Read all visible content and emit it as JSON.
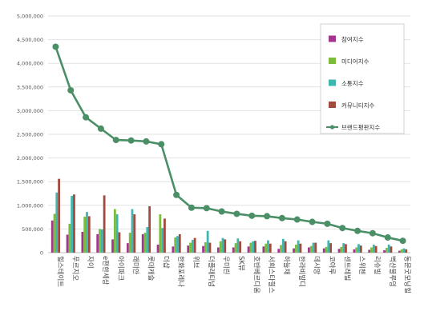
{
  "chart_data": {
    "type": "bar",
    "title": "",
    "xlabel": "",
    "ylabel": "",
    "ylim": [
      0,
      5000000
    ],
    "yticks": [
      "0",
      "500,000",
      "1,000,000",
      "1,500,000",
      "2,000,000",
      "2,500,000",
      "3,000,000",
      "3,500,000",
      "4,000,000",
      "4,500,000",
      "5,000,000"
    ],
    "grid": true,
    "legend_position": "top-right",
    "categories": [
      "힐스테이트",
      "푸르지오",
      "자이",
      "e편한세상",
      "아이파크",
      "래미안",
      "롯데캐슬",
      "더샵",
      "한화포레나",
      "위브",
      "더플래티넘",
      "우미린",
      "SK뷰",
      "호반베르디움",
      "서희스타힐스",
      "하늘채",
      "한라비발디",
      "데시앙",
      "코아루",
      "센트레빌",
      "스위첸",
      "리슈빌",
      "벽산블루밍",
      "동문굿모닝힐"
    ],
    "series": [
      {
        "name": "참여지수",
        "color": "#a4358f",
        "kind": "bar",
        "values": [
          680000,
          380000,
          440000,
          390000,
          280000,
          200000,
          390000,
          170000,
          130000,
          150000,
          140000,
          110000,
          110000,
          130000,
          130000,
          80000,
          90000,
          110000,
          90000,
          80000,
          70000,
          60000,
          50000,
          40000
        ]
      },
      {
        "name": "미디어지수",
        "color": "#7bbd3b",
        "kind": "bar",
        "values": [
          820000,
          610000,
          760000,
          500000,
          920000,
          420000,
          420000,
          810000,
          320000,
          210000,
          220000,
          240000,
          200000,
          210000,
          190000,
          160000,
          170000,
          140000,
          120000,
          120000,
          110000,
          110000,
          100000,
          70000
        ]
      },
      {
        "name": "소통지수",
        "color": "#3fb6b0",
        "kind": "bar",
        "values": [
          1270000,
          1200000,
          860000,
          490000,
          810000,
          920000,
          540000,
          520000,
          350000,
          270000,
          460000,
          310000,
          300000,
          240000,
          260000,
          290000,
          260000,
          210000,
          260000,
          200000,
          180000,
          170000,
          170000,
          90000
        ]
      },
      {
        "name": "커뮤니티지수",
        "color": "#a34a3f",
        "kind": "bar",
        "values": [
          1560000,
          1230000,
          770000,
          1210000,
          430000,
          810000,
          980000,
          720000,
          390000,
          310000,
          210000,
          280000,
          240000,
          250000,
          190000,
          240000,
          190000,
          210000,
          200000,
          180000,
          150000,
          140000,
          130000,
          70000
        ]
      },
      {
        "name": "브랜드평판지수",
        "color": "#4a8f66",
        "kind": "line",
        "values": [
          4350000,
          3430000,
          2860000,
          2620000,
          2380000,
          2370000,
          2350000,
          2290000,
          1220000,
          950000,
          940000,
          870000,
          820000,
          780000,
          770000,
          730000,
          700000,
          650000,
          610000,
          520000,
          460000,
          410000,
          320000,
          250000
        ]
      }
    ]
  }
}
